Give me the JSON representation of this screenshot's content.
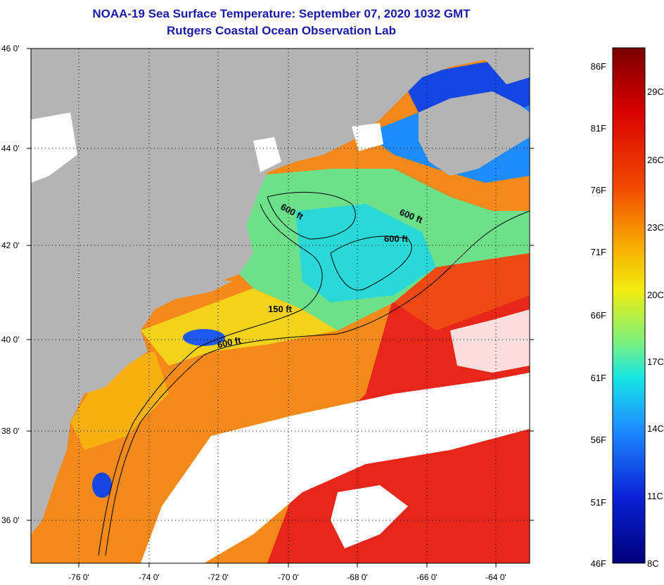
{
  "title": "NOAA-19 Sea Surface Temperature:  September 07, 2020 1032 GMT",
  "subtitle": "Rutgers Coastal Ocean Observation Lab",
  "lat_ticks": [
    "46 0'",
    "44 0'",
    "42 0'",
    "40 0'",
    "38 0'",
    "36 0'"
  ],
  "lon_ticks": [
    "-76 0'",
    "-74 0'",
    "-72 0'",
    "-70 0'",
    "-68 0'",
    "-66 0'",
    "-64 0'"
  ],
  "contour_labels": [
    "600 ft",
    "600 ft",
    "600 ft",
    "150 ft",
    "600 ft"
  ],
  "colorbar": {
    "fahrenheit": [
      "86F",
      "81F",
      "76F",
      "71F",
      "66F",
      "61F",
      "56F",
      "51F",
      "46F"
    ],
    "celsius": [
      "29C",
      "26C",
      "23C",
      "20C",
      "17C",
      "14C",
      "11C",
      "8C"
    ]
  },
  "colors": {
    "title": "#1a1aa6",
    "land": "#b4b4b4",
    "cloud": "#ffffff",
    "scale": [
      "#7a0000",
      "#d80000",
      "#f24a00",
      "#f7a800",
      "#f2ec10",
      "#7cf07c",
      "#18e6e6",
      "#1e8cff",
      "#0a22d8",
      "#00007a"
    ]
  }
}
